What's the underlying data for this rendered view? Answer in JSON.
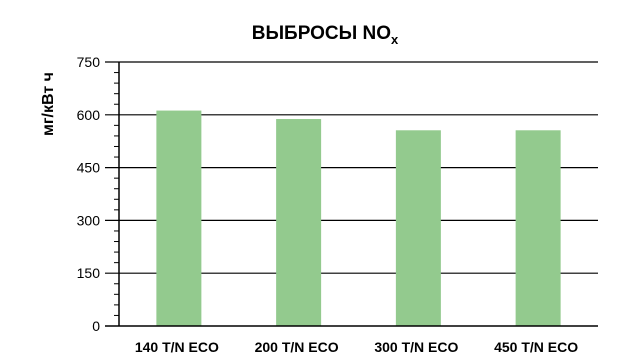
{
  "chart_data": {
    "type": "bar",
    "title": "ВЫБРОСЫ NO",
    "title_subscript": "x",
    "ylabel": "мг/кВт ч",
    "xlabel": "",
    "categories": [
      "140 T/N ECO",
      "200 T/N ECO",
      "300 T/N ECO",
      "450 T/N ECO"
    ],
    "values": [
      612,
      588,
      556,
      556
    ],
    "ylim": [
      0,
      750
    ],
    "yticks": [
      0,
      150,
      300,
      450,
      600,
      750
    ],
    "ytick_labels": [
      "0",
      "150",
      "300",
      "450",
      "600",
      "750"
    ],
    "grid": true,
    "legend": "none",
    "bar_color": "#93ca8e"
  }
}
